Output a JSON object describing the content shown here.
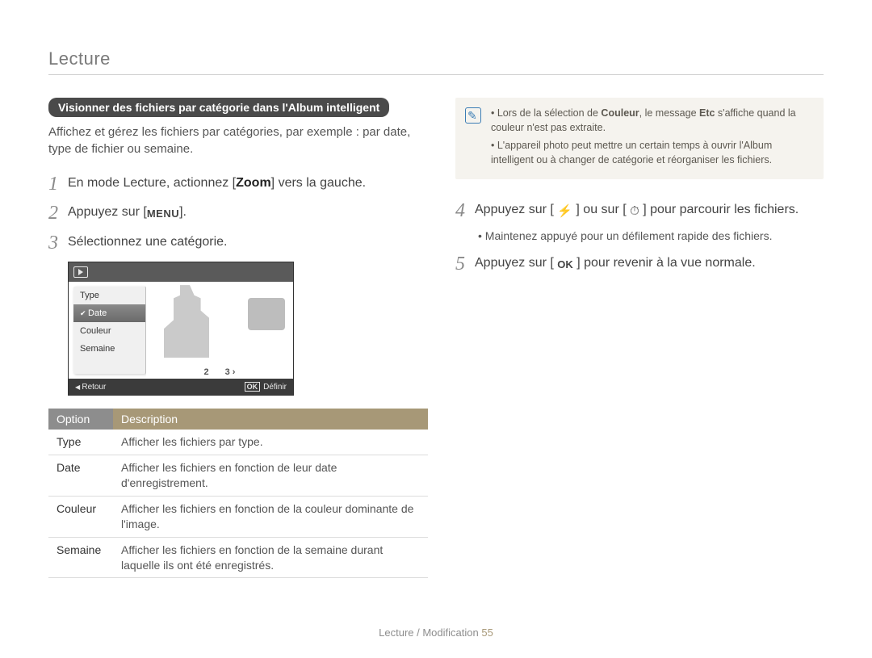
{
  "section_title": "Lecture",
  "pill": "Visionner des fichiers par catégorie dans l'Album intelligent",
  "intro": "Affichez et gérez les fichiers par catégories, par exemple : par date, type de fichier ou semaine.",
  "left_steps": [
    {
      "n": "1",
      "parts": [
        "En mode Lecture, actionnez [",
        {
          "b": "Zoom"
        },
        "] vers la gauche."
      ]
    },
    {
      "n": "2",
      "parts": [
        "Appuyez sur [",
        {
          "glyph": "menu",
          "t": "MENU"
        },
        "]."
      ]
    },
    {
      "n": "3",
      "parts": [
        "Sélectionnez une catégorie."
      ]
    }
  ],
  "lcd": {
    "menu_items": [
      "Type",
      "Date",
      "Couleur",
      "Semaine"
    ],
    "selected_index": 1,
    "nav_left": "2",
    "nav_right": "3",
    "back_label": "Retour",
    "ok_label": "Définir"
  },
  "table": {
    "head_option": "Option",
    "head_desc": "Description",
    "rows": [
      {
        "opt": "Type",
        "desc": "Afficher les fichiers par type."
      },
      {
        "opt": "Date",
        "desc": "Afficher les fichiers en fonction de leur date d'enregistrement."
      },
      {
        "opt": "Couleur",
        "desc": "Afficher les fichiers en fonction de la couleur dominante de l'image."
      },
      {
        "opt": "Semaine",
        "desc": "Afficher les fichiers en fonction de la semaine durant laquelle ils ont été enregistrés."
      }
    ]
  },
  "note": {
    "bullets": [
      {
        "pre": "Lors de la sélection de ",
        "b1": "Couleur",
        "mid": ", le message ",
        "b2": "Etc",
        "post": " s'affiche quand la couleur n'est pas extraite."
      },
      {
        "text": "L'appareil photo peut mettre un certain temps à ouvrir l'Album intelligent ou à changer de catégorie et réorganiser les fichiers."
      }
    ]
  },
  "right_steps": [
    {
      "n": "4",
      "parts": [
        "Appuyez sur [ ",
        {
          "glyph": "flash"
        },
        " ] ou sur [ ",
        {
          "glyph": "timer"
        },
        " ] pour parcourir les fichiers."
      ],
      "sub": "Maintenez appuyé pour un défilement rapide des fichiers."
    },
    {
      "n": "5",
      "parts": [
        "Appuyez sur [ ",
        {
          "glyph": "ok",
          "t": "OK"
        },
        " ] pour revenir à la vue normale."
      ]
    }
  ],
  "footer": {
    "text": "Lecture / Modification",
    "page": "55"
  },
  "colors": {
    "pill_bg": "#4a4a4a",
    "table_head_option_bg": "#8d8d8d",
    "table_head_desc_bg": "#a79877",
    "note_bg": "#f5f3ee",
    "note_icon": "#3b7db5",
    "page_num": "#a99a7a"
  }
}
